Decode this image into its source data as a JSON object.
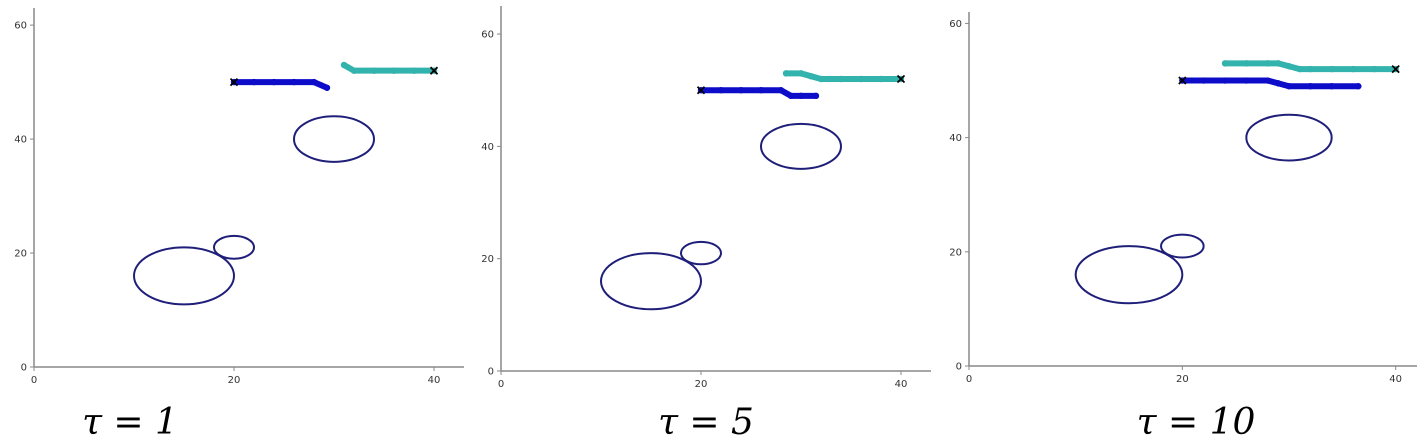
{
  "colors": {
    "obstacle": "#1f1f7a",
    "agent_dark": "#0d0dc9",
    "agent_teal": "#33b3ad",
    "axis": "#888888",
    "goal_marker": "#000000"
  },
  "chart_data": [
    {
      "type": "scatter",
      "title": "",
      "caption": "τ = 1",
      "xlabel": "",
      "ylabel": "",
      "xlim": [
        0,
        43
      ],
      "ylim": [
        0,
        63
      ],
      "xticks": [
        0,
        20,
        40
      ],
      "yticks": [
        0,
        20,
        40,
        60
      ],
      "obstacles": [
        {
          "cx": 15,
          "cy": 16,
          "rx": 5,
          "ry": 5
        },
        {
          "cx": 20,
          "cy": 21,
          "rx": 2,
          "ry": 2
        },
        {
          "cx": 30,
          "cy": 40,
          "rx": 4,
          "ry": 4
        }
      ],
      "series": [
        {
          "color_key": "agent_dark",
          "x": [
            20,
            22,
            24,
            26,
            28,
            29.3
          ],
          "y": [
            50,
            50,
            50,
            50,
            50,
            49
          ]
        },
        {
          "color_key": "agent_teal",
          "x": [
            31,
            32,
            34,
            36,
            38,
            40
          ],
          "y": [
            53,
            52,
            52,
            52,
            52,
            52
          ]
        }
      ],
      "goals": [
        {
          "x": 20,
          "y": 50
        },
        {
          "x": 40,
          "y": 52
        }
      ]
    },
    {
      "type": "scatter",
      "title": "",
      "caption": "τ = 5",
      "xlabel": "",
      "ylabel": "",
      "xlim": [
        0,
        43
      ],
      "ylim": [
        0,
        65
      ],
      "xticks": [
        0,
        20,
        40
      ],
      "yticks": [
        0,
        20,
        40,
        60
      ],
      "obstacles": [
        {
          "cx": 15,
          "cy": 16,
          "rx": 5,
          "ry": 5
        },
        {
          "cx": 20,
          "cy": 21,
          "rx": 2,
          "ry": 2
        },
        {
          "cx": 30,
          "cy": 40,
          "rx": 4,
          "ry": 4
        }
      ],
      "series": [
        {
          "color_key": "agent_dark",
          "x": [
            20,
            22,
            24,
            26,
            28,
            29,
            30,
            31.5
          ],
          "y": [
            50,
            50,
            50,
            50,
            50,
            49,
            49,
            49
          ]
        },
        {
          "color_key": "agent_teal",
          "x": [
            28.5,
            30,
            31,
            32,
            34,
            36,
            38,
            40
          ],
          "y": [
            53,
            53,
            52.5,
            52,
            52,
            52,
            52,
            52
          ]
        }
      ],
      "goals": [
        {
          "x": 20,
          "y": 50
        },
        {
          "x": 40,
          "y": 52
        }
      ]
    },
    {
      "type": "scatter",
      "title": "",
      "caption": "τ = 10",
      "xlabel": "",
      "ylabel": "",
      "xlim": [
        0,
        42
      ],
      "ylim": [
        0,
        62
      ],
      "xticks": [
        0,
        20,
        40
      ],
      "yticks": [
        0,
        20,
        40,
        60
      ],
      "obstacles": [
        {
          "cx": 15,
          "cy": 16,
          "rx": 5,
          "ry": 5
        },
        {
          "cx": 20,
          "cy": 21,
          "rx": 2,
          "ry": 2
        },
        {
          "cx": 30,
          "cy": 40,
          "rx": 4,
          "ry": 4
        }
      ],
      "series": [
        {
          "color_key": "agent_dark",
          "x": [
            20,
            22,
            24,
            26,
            28,
            29,
            30,
            32,
            34,
            36.5
          ],
          "y": [
            50,
            50,
            50,
            50,
            50,
            49.5,
            49,
            49,
            49,
            49
          ]
        },
        {
          "color_key": "agent_teal",
          "x": [
            24,
            26,
            28,
            29,
            30,
            31,
            32,
            34,
            36,
            38,
            40
          ],
          "y": [
            53,
            53,
            53,
            53,
            52.5,
            52,
            52,
            52,
            52,
            52,
            52
          ]
        }
      ],
      "goals": [
        {
          "x": 20,
          "y": 50
        },
        {
          "x": 40,
          "y": 52
        }
      ]
    }
  ]
}
